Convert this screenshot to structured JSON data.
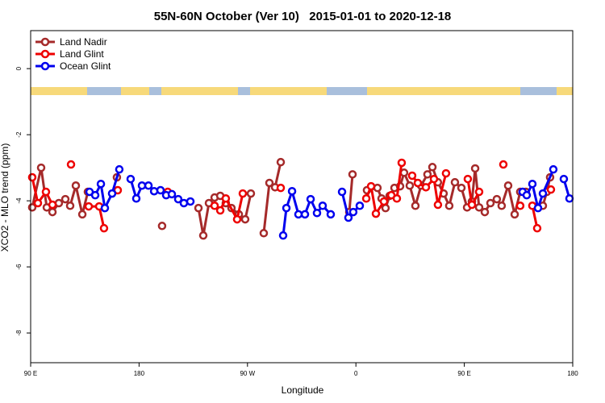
{
  "chart_data": {
    "type": "line",
    "title": "55N-60N October (Ver 10)   2015-01-01 to 2020-12-18",
    "xlabel": "Longitude",
    "ylabel": "XCO2 - MLO trend (ppm)",
    "xlim": [
      90,
      540
    ],
    "ylim": [
      -8.9,
      1.15
    ],
    "xticks": [
      {
        "value": 90,
        "label": "90 E"
      },
      180,
      {
        "value": 270,
        "label": "90 W"
      },
      {
        "value": 360,
        "label": "0"
      },
      {
        "value": 450,
        "label": "90 E"
      },
      {
        "value": 540,
        "label": "180"
      }
    ],
    "yticks": [
      0,
      -2,
      -4,
      -6,
      -8
    ],
    "legend": "top-left",
    "series": [
      {
        "name": "Land Nadir",
        "color": "#a52a2a",
        "x": [
          91.3,
          98.7,
          103.4,
          108.1,
          113.4,
          118.8,
          122.8,
          127.5,
          132.9,
          137.5,
          null,
          161.6,
          null,
          199.1,
          null,
          229.3,
          233.3,
          238.0,
          242.7,
          247.4,
          252.0,
          256.7,
          262.8,
          268.1,
          272.8,
          null,
          283.5,
          288.2,
          292.9,
          297.6,
          null,
          354.5,
          357.2,
          null,
          369.2,
          377.9,
          381.3,
          384.6,
          388.0,
          392.0,
          396.7,
          400.0,
          404.7,
          409.4,
          414.1,
          419.4,
          423.5,
          428.1,
          432.8,
          437.5,
          442.2,
          447.6,
          452.3,
          456.3,
          459.0,
          462.3,
          467.0,
          471.7,
          477.0,
          481.0,
          486.4,
          491.8,
          496.4,
          501.1,
          null,
          515.2,
          518.5,
          521.2
        ],
        "values": [
          -4.2,
          -3.0,
          -4.2,
          -4.34,
          -4.07,
          -3.95,
          -4.15,
          -3.54,
          -4.41,
          -3.73,
          null,
          -3.29,
          null,
          -4.76,
          null,
          -4.22,
          -5.05,
          -4.07,
          -3.9,
          -3.85,
          -4.07,
          -4.22,
          -4.41,
          -4.56,
          -3.78,
          null,
          -4.98,
          -3.46,
          -3.59,
          -2.83,
          null,
          -4.34,
          -3.2,
          null,
          -3.68,
          -3.61,
          -3.93,
          -4.22,
          -3.85,
          -3.61,
          -3.56,
          -3.15,
          -3.54,
          -4.15,
          -3.54,
          -3.2,
          -2.98,
          -3.44,
          -3.78,
          -4.15,
          -3.44,
          -3.61,
          -4.2,
          -4.02,
          -3.02,
          -4.2,
          -4.34,
          -4.07,
          -3.95,
          -4.15,
          -3.54,
          -4.41,
          -3.73,
          -3.73,
          null,
          -4.15,
          -3.73,
          -3.29
        ]
      },
      {
        "name": "Land Glint",
        "color": "#ee0000",
        "x": [
          91.3,
          96.0,
          102.7,
          108.1,
          null,
          123.5,
          null,
          138.2,
          146.9,
          150.9,
          null,
          162.3,
          null,
          203.8,
          null,
          242.7,
          247.4,
          252.0,
          261.4,
          266.1,
          null,
          297.6,
          null,
          368.6,
          372.6,
          376.6,
          383.3,
          389.4,
          394.0,
          398.0,
          null,
          406.7,
          411.4,
          418.1,
          424.8,
          428.1,
          434.8,
          null,
          452.9,
          456.3,
          462.3,
          null,
          482.4,
          null,
          496.4,
          null,
          506.5,
          510.5,
          null,
          521.9
        ],
        "values": [
          -3.29,
          -4.07,
          -3.73,
          -4.12,
          null,
          -2.9,
          null,
          -4.17,
          -4.17,
          -4.83,
          null,
          -3.68,
          null,
          -3.73,
          null,
          -4.15,
          -4.29,
          -3.93,
          -4.56,
          -3.78,
          null,
          -3.61,
          null,
          -3.93,
          -3.56,
          -4.39,
          -4.02,
          -3.83,
          -3.93,
          -2.85,
          null,
          -3.24,
          -3.46,
          -3.59,
          -3.34,
          -4.12,
          -3.17,
          null,
          -3.34,
          -4.12,
          -3.73,
          null,
          -2.9,
          null,
          -4.15,
          null,
          -4.15,
          -4.83,
          null,
          -3.66
        ]
      },
      {
        "name": "Ocean Glint",
        "color": "#0000ee",
        "x": [
          138.9,
          143.6,
          148.3,
          151.6,
          157.6,
          163.6,
          null,
          173.0,
          177.7,
          182.4,
          187.8,
          192.5,
          197.8,
          202.5,
          207.2,
          212.5,
          217.2,
          222.6,
          null,
          299.6,
          302.3,
          307.0,
          312.3,
          317.7,
          322.4,
          327.7,
          332.4,
          339.1,
          null,
          348.5,
          353.8,
          357.8,
          363.2,
          null,
          498.4,
          501.8,
          506.5,
          511.2,
          515.2,
          523.9,
          null,
          532.6,
          537.3
        ],
        "values": [
          -3.73,
          -3.83,
          -3.49,
          -4.22,
          -3.78,
          -3.05,
          null,
          -3.34,
          -3.93,
          -3.54,
          -3.54,
          -3.71,
          -3.68,
          -3.83,
          -3.8,
          -3.95,
          -4.07,
          -4.02,
          null,
          -5.05,
          -4.22,
          -3.71,
          -4.41,
          -4.41,
          -3.95,
          -4.37,
          -4.15,
          -4.41,
          null,
          -3.73,
          -4.51,
          -4.34,
          -4.15,
          null,
          -3.73,
          -3.83,
          -3.49,
          -4.22,
          -3.78,
          -3.05,
          null,
          -3.34,
          -3.93
        ]
      }
    ]
  }
}
